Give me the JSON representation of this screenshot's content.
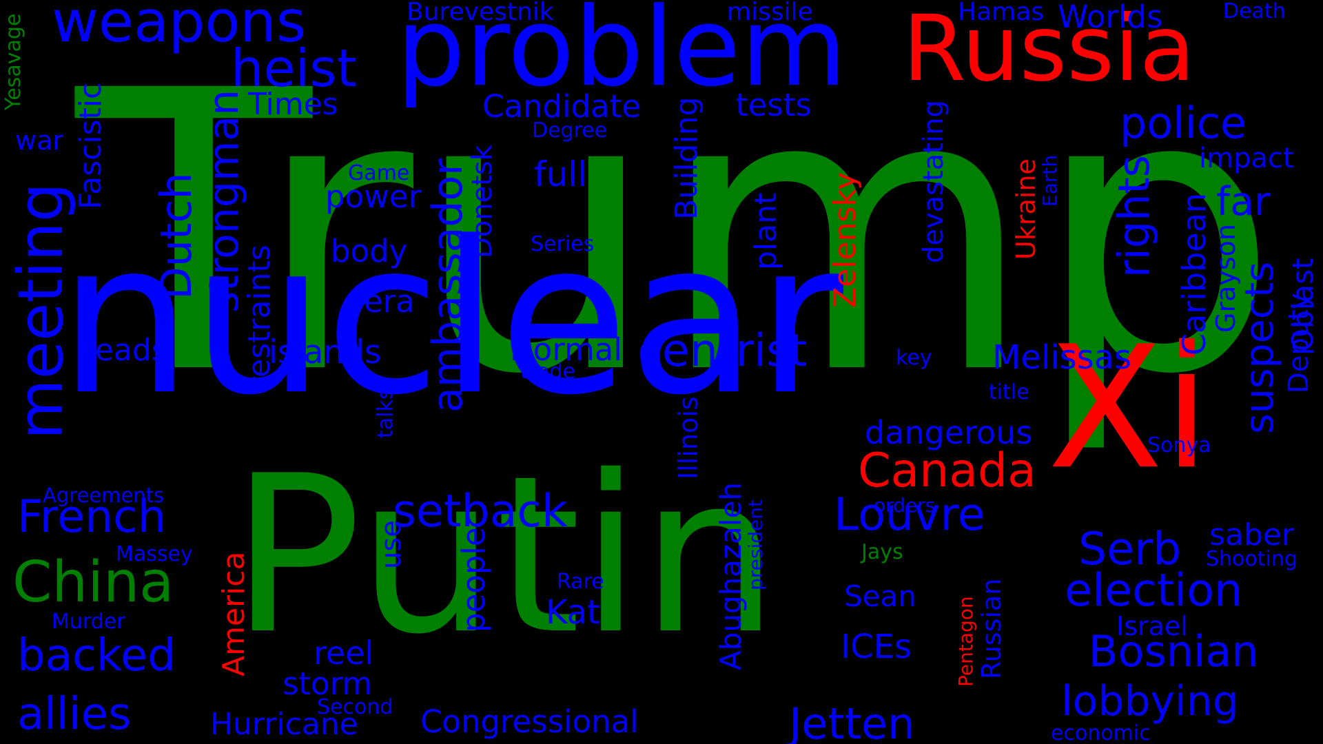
{
  "colors": {
    "background": "#000000",
    "blue": "#0000FF",
    "green": "#008000",
    "red": "#FF0000"
  },
  "words": [
    {
      "text": "Trump",
      "color": "green"
    },
    {
      "text": "nuclear",
      "color": "blue"
    },
    {
      "text": "Putin",
      "color": "green"
    },
    {
      "text": "problem",
      "color": "blue"
    },
    {
      "text": "Russia",
      "color": "red"
    },
    {
      "text": "Xi",
      "color": "red"
    },
    {
      "text": "weapons",
      "color": "blue"
    },
    {
      "text": "heist",
      "color": "blue"
    },
    {
      "text": "China",
      "color": "green"
    },
    {
      "text": "meeting",
      "color": "blue"
    },
    {
      "text": "ambassador",
      "color": "blue"
    },
    {
      "text": "strongman",
      "color": "blue"
    },
    {
      "text": "Dutch",
      "color": "blue"
    },
    {
      "text": "centrist",
      "color": "blue"
    },
    {
      "text": "setback",
      "color": "blue"
    },
    {
      "text": "Canada",
      "color": "red"
    },
    {
      "text": "Louvre",
      "color": "blue"
    },
    {
      "text": "election",
      "color": "blue"
    },
    {
      "text": "Bosnian",
      "color": "blue"
    },
    {
      "text": "lobbying",
      "color": "blue"
    },
    {
      "text": "Jetten",
      "color": "blue"
    },
    {
      "text": "Serb",
      "color": "blue"
    },
    {
      "text": "police",
      "color": "blue"
    },
    {
      "text": "rights",
      "color": "blue"
    },
    {
      "text": "suspects",
      "color": "blue"
    },
    {
      "text": "far",
      "color": "blue"
    },
    {
      "text": "French",
      "color": "blue"
    },
    {
      "text": "backed",
      "color": "blue"
    },
    {
      "text": "allies",
      "color": "blue"
    },
    {
      "text": "Congressional",
      "color": "blue"
    },
    {
      "text": "Hurricane",
      "color": "blue"
    },
    {
      "text": "storm",
      "color": "blue"
    },
    {
      "text": "reel",
      "color": "blue"
    },
    {
      "text": "Candidate",
      "color": "blue"
    },
    {
      "text": "tests",
      "color": "blue"
    },
    {
      "text": "Times",
      "color": "blue"
    },
    {
      "text": "Burevestnik",
      "color": "blue"
    },
    {
      "text": "missile",
      "color": "blue"
    },
    {
      "text": "Hamas",
      "color": "blue"
    },
    {
      "text": "Worlds",
      "color": "blue"
    },
    {
      "text": "Death",
      "color": "blue"
    },
    {
      "text": "impact",
      "color": "blue"
    },
    {
      "text": "full",
      "color": "blue"
    },
    {
      "text": "power",
      "color": "blue"
    },
    {
      "text": "body",
      "color": "blue"
    },
    {
      "text": "era",
      "color": "blue"
    },
    {
      "text": "heads",
      "color": "blue"
    },
    {
      "text": "islands",
      "color": "blue"
    },
    {
      "text": "Normal",
      "color": "blue"
    },
    {
      "text": "dangerous",
      "color": "blue"
    },
    {
      "text": "Melissas",
      "color": "blue"
    },
    {
      "text": "Kat",
      "color": "blue"
    },
    {
      "text": "Sean",
      "color": "blue"
    },
    {
      "text": "ICEs",
      "color": "blue"
    },
    {
      "text": "saber",
      "color": "blue"
    },
    {
      "text": "Israel",
      "color": "blue"
    },
    {
      "text": "war",
      "color": "blue"
    },
    {
      "text": "Degree",
      "color": "blue"
    },
    {
      "text": "Game",
      "color": "blue"
    },
    {
      "text": "Series",
      "color": "blue"
    },
    {
      "text": "trade",
      "color": "blue"
    },
    {
      "text": "key",
      "color": "blue"
    },
    {
      "text": "title",
      "color": "blue"
    },
    {
      "text": "Sonya",
      "color": "blue"
    },
    {
      "text": "orders",
      "color": "blue"
    },
    {
      "text": "Rare",
      "color": "blue"
    },
    {
      "text": "Agreements",
      "color": "blue"
    },
    {
      "text": "Massey",
      "color": "blue"
    },
    {
      "text": "Murder",
      "color": "blue"
    },
    {
      "text": "Second",
      "color": "blue"
    },
    {
      "text": "economic",
      "color": "blue"
    },
    {
      "text": "Shooting",
      "color": "blue"
    },
    {
      "text": "Jays",
      "color": "green"
    },
    {
      "text": "Yesavage",
      "color": "green"
    },
    {
      "text": "Fascistic",
      "color": "blue"
    },
    {
      "text": "restraints",
      "color": "blue"
    },
    {
      "text": "Donetsk",
      "color": "blue"
    },
    {
      "text": "Building",
      "color": "blue"
    },
    {
      "text": "plant",
      "color": "blue"
    },
    {
      "text": "Zelensky",
      "color": "red"
    },
    {
      "text": "devastating",
      "color": "blue"
    },
    {
      "text": "Ukraine",
      "color": "red"
    },
    {
      "text": "Earth",
      "color": "blue"
    },
    {
      "text": "Caribbean",
      "color": "blue"
    },
    {
      "text": "Grayson",
      "color": "blue"
    },
    {
      "text": "Deputy",
      "color": "blue"
    },
    {
      "text": "Oblast",
      "color": "blue"
    },
    {
      "text": "America",
      "color": "red"
    },
    {
      "text": "use",
      "color": "blue"
    },
    {
      "text": "people",
      "color": "blue"
    },
    {
      "text": "talks",
      "color": "blue"
    },
    {
      "text": "Illinois",
      "color": "blue"
    },
    {
      "text": "Abughazaleh",
      "color": "blue"
    },
    {
      "text": "president",
      "color": "blue"
    },
    {
      "text": "Russian",
      "color": "blue"
    },
    {
      "text": "Pentagon",
      "color": "red"
    }
  ]
}
